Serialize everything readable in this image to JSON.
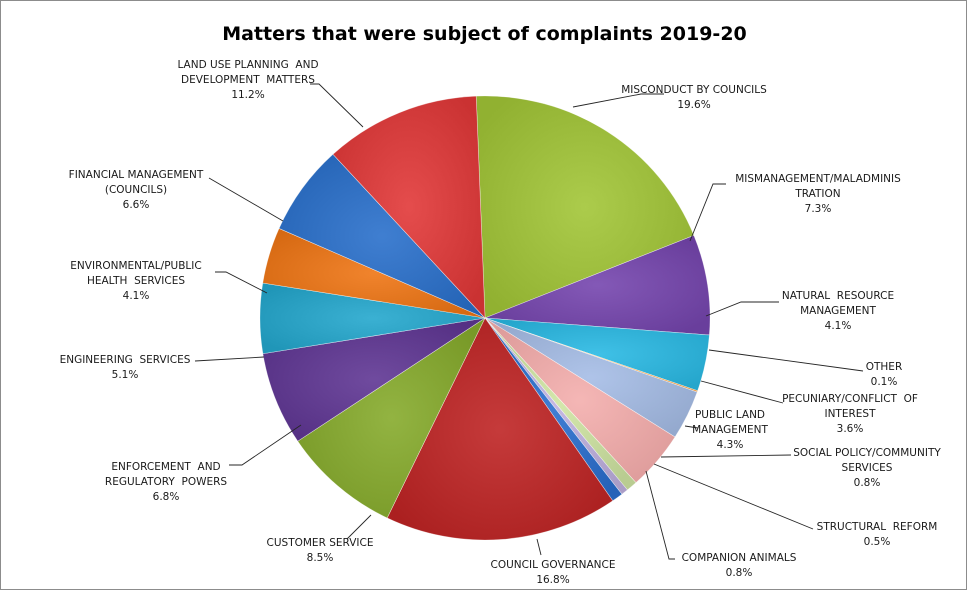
{
  "chart_data": {
    "type": "pie",
    "title": "Matters that were subject of complaints 2019-20",
    "slices": [
      {
        "name_lines": [
          "MISCONDUCT BY COUNCILS"
        ],
        "value": 19.6,
        "pct_label": "19.6%",
        "color": "#9bbb3b"
      },
      {
        "name_lines": [
          "MISMANAGEMENT/MALADMINIS",
          "TRATION"
        ],
        "value": 7.3,
        "pct_label": "7.3%",
        "color": "#7348a6"
      },
      {
        "name_lines": [
          "NATURAL  RESOURCE",
          "MANAGEMENT"
        ],
        "value": 4.1,
        "pct_label": "4.1%",
        "color": "#2fb0d6"
      },
      {
        "name_lines": [
          "OTHER"
        ],
        "value": 0.1,
        "pct_label": "0.1%",
        "color": "#f39b3c"
      },
      {
        "name_lines": [
          "PECUNIARY/CONFLICT  OF",
          "INTEREST"
        ],
        "value": 3.6,
        "pct_label": "3.6%",
        "color": "#9eb3d8"
      },
      {
        "name_lines": [
          "PUBLIC LAND",
          "MANAGEMENT"
        ],
        "value": 4.3,
        "pct_label": "4.3%",
        "color": "#e8a6a5"
      },
      {
        "name_lines": [
          "SOCIAL POLICY/COMMUNITY",
          "SERVICES"
        ],
        "value": 0.8,
        "pct_label": "0.8%",
        "color": "#c3d69b"
      },
      {
        "name_lines": [
          "STRUCTURAL  REFORM"
        ],
        "value": 0.5,
        "pct_label": "0.5%",
        "color": "#b4a7d1"
      },
      {
        "name_lines": [
          "COMPANION ANIMALS"
        ],
        "value": 0.8,
        "pct_label": "0.8%",
        "color": "#2f6cc2"
      },
      {
        "name_lines": [
          "COUNCIL GOVERNANCE"
        ],
        "value": 16.8,
        "pct_label": "16.8%",
        "color": "#b52a2a"
      },
      {
        "name_lines": [
          "CUSTOMER SERVICE"
        ],
        "value": 8.5,
        "pct_label": "8.5%",
        "color": "#82a331"
      },
      {
        "name_lines": [
          "ENFORCEMENT  AND",
          "REGULATORY  POWERS"
        ],
        "value": 6.8,
        "pct_label": "6.8%",
        "color": "#5f3a8e"
      },
      {
        "name_lines": [
          "ENGINEERING  SERVICES"
        ],
        "value": 5.1,
        "pct_label": "5.1%",
        "color": "#2aa0c2"
      },
      {
        "name_lines": [
          "ENVIRONMENTAL/PUBLIC",
          "HEALTH  SERVICES"
        ],
        "value": 4.1,
        "pct_label": "4.1%",
        "color": "#e0731c"
      },
      {
        "name_lines": [
          "FINANCIAL MANAGEMENT",
          "(COUNCILS)"
        ],
        "value": 6.6,
        "pct_label": "6.6%",
        "color": "#2f6ec0"
      },
      {
        "name_lines": [
          "LAND USE PLANNING  AND",
          "DEVELOPMENT  MATTERS"
        ],
        "value": 11.2,
        "pct_label": "11.2%",
        "color": "#d43c3c"
      }
    ],
    "legend": "none"
  }
}
